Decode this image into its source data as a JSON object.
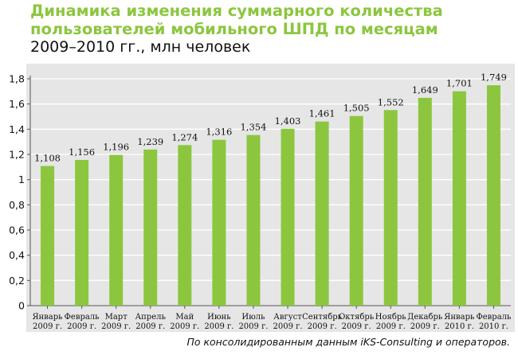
{
  "colors": {
    "bar": "#8cc63f",
    "title": "#8cc63f",
    "panel": "#e6e6e6",
    "grid": "#ffffff",
    "text": "#111111"
  },
  "chart_data": {
    "type": "bar",
    "title": "Динамика изменения суммарного количества пользователей мобильного ШПД по месяцам",
    "title_lines": [
      "Динамика изменения суммарного количества",
      "пользователей мобильного ШПД по месяцам"
    ],
    "subtitle": "2009–2010 гг., млн человек",
    "xlabel": "",
    "ylabel": "",
    "ylim": [
      0,
      1.8
    ],
    "grid": true,
    "yticks": [
      {
        "value": 0,
        "label": "0"
      },
      {
        "value": 0.2,
        "label": "0,2"
      },
      {
        "value": 0.4,
        "label": "0,4"
      },
      {
        "value": 0.6,
        "label": "0,6"
      },
      {
        "value": 0.8,
        "label": "0,8"
      },
      {
        "value": 1.0,
        "label": "1"
      },
      {
        "value": 1.2,
        "label": "1,2"
      },
      {
        "value": 1.4,
        "label": "1,4"
      },
      {
        "value": 1.6,
        "label": "1,6"
      },
      {
        "value": 1.8,
        "label": "1,8"
      }
    ],
    "categories": [
      [
        "Январь",
        "2009 г."
      ],
      [
        "Февраль",
        "2009 г."
      ],
      [
        "Март",
        "2009 г."
      ],
      [
        "Апрель",
        "2009 г."
      ],
      [
        "Май",
        "2009 г."
      ],
      [
        "Июнь",
        "2009 г."
      ],
      [
        "Июль",
        "2009 г."
      ],
      [
        "Август",
        "2009 г."
      ],
      [
        "Сентябрь",
        "2009 г."
      ],
      [
        "Октябрь",
        "2009 г."
      ],
      [
        "Ноябрь",
        "2009 г."
      ],
      [
        "Декабрь",
        "2009 г."
      ],
      [
        "Январь",
        "2010 г."
      ],
      [
        "Февраль",
        "2010 г."
      ]
    ],
    "values": [
      1.108,
      1.156,
      1.196,
      1.239,
      1.274,
      1.316,
      1.354,
      1.403,
      1.461,
      1.505,
      1.552,
      1.649,
      1.701,
      1.749
    ],
    "value_labels": [
      "1,108",
      "1,156",
      "1,196",
      "1,239",
      "1,274",
      "1,316",
      "1,354",
      "1,403",
      "1,461",
      "1,505",
      "1,552",
      "1,649",
      "1,701",
      "1,749"
    ],
    "source_note": "По консолидированным данным iKS-Consulting и операторов."
  }
}
